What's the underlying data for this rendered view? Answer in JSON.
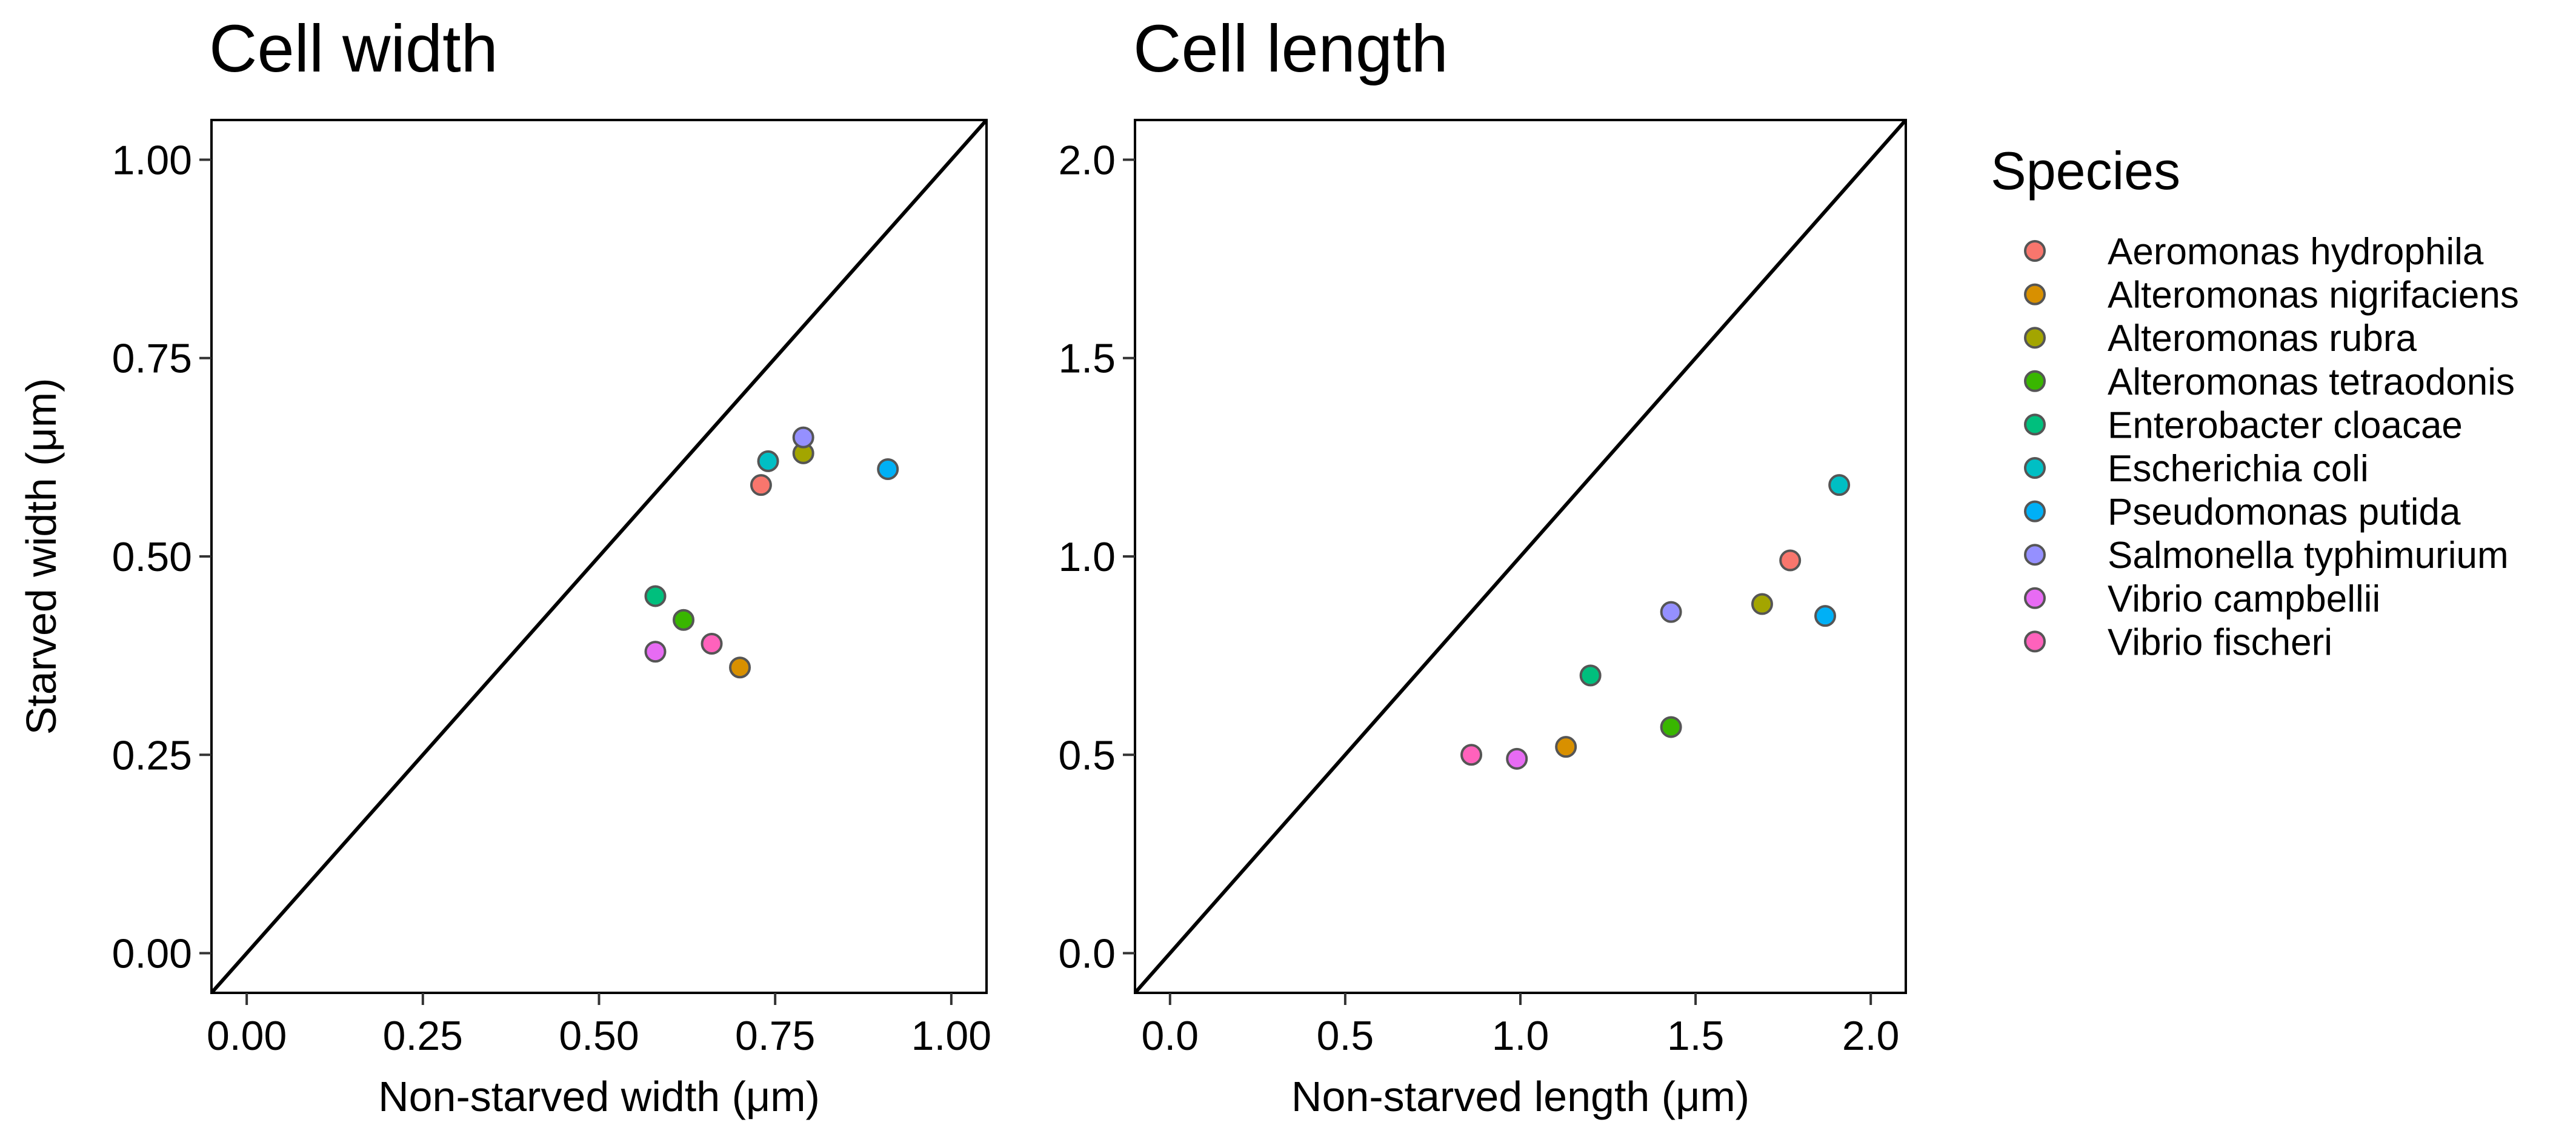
{
  "colors": {
    "Aeromonas hydrophila": "#F8766D",
    "Alteromonas nigrifaciens": "#D89000",
    "Alteromonas rubra": "#A3A500",
    "Alteromonas tetraodonis": "#39B600",
    "Enterobacter cloacae": "#00BF7D",
    "Escherichia coli": "#00BFC4",
    "Pseudomonas putida": "#00B0F6",
    "Salmonella typhimurium": "#9590FF",
    "Vibrio campbellii": "#E76BF3",
    "Vibrio fischeri": "#FF62BC",
    "point_outline": "#555555",
    "identity_line": "#000000"
  },
  "legend": {
    "title": "Species",
    "items": [
      "Aeromonas hydrophila",
      "Alteromonas nigrifaciens",
      "Alteromonas rubra",
      "Alteromonas tetraodonis",
      "Enterobacter cloacae",
      "Escherichia coli",
      "Pseudomonas putida",
      "Salmonella typhimurium",
      "Vibrio campbellii",
      "Vibrio fischeri"
    ]
  },
  "chart_data": [
    {
      "type": "scatter",
      "title": "Cell width",
      "xlabel": "Non-starved width (μm)",
      "ylabel": "Starved width (μm)",
      "xlim": [
        -0.05,
        1.05
      ],
      "ylim": [
        -0.05,
        1.05
      ],
      "xticks": [
        "0.00",
        "0.25",
        "0.50",
        "0.75",
        "1.00"
      ],
      "yticks": [
        "0.00",
        "0.25",
        "0.50",
        "0.75",
        "1.00"
      ],
      "grid": false,
      "reference_line": "y = x",
      "points": [
        {
          "series": "Aeromonas hydrophila",
          "x": 0.73,
          "y": 0.59
        },
        {
          "series": "Alteromonas nigrifaciens",
          "x": 0.7,
          "y": 0.36
        },
        {
          "series": "Alteromonas rubra",
          "x": 0.79,
          "y": 0.63
        },
        {
          "series": "Alteromonas tetraodonis",
          "x": 0.62,
          "y": 0.42
        },
        {
          "series": "Enterobacter cloacae",
          "x": 0.58,
          "y": 0.45
        },
        {
          "series": "Escherichia coli",
          "x": 0.74,
          "y": 0.62
        },
        {
          "series": "Pseudomonas putida",
          "x": 0.91,
          "y": 0.61
        },
        {
          "series": "Salmonella typhimurium",
          "x": 0.79,
          "y": 0.65
        },
        {
          "series": "Vibrio campbellii",
          "x": 0.58,
          "y": 0.38
        },
        {
          "series": "Vibrio fischeri",
          "x": 0.66,
          "y": 0.39
        }
      ]
    },
    {
      "type": "scatter",
      "title": "Cell length",
      "xlabel": "Non-starved length (μm)",
      "ylabel": "",
      "xlim": [
        -0.1,
        2.1
      ],
      "ylim": [
        -0.1,
        2.1
      ],
      "xticks": [
        "0.0",
        "0.5",
        "1.0",
        "1.5",
        "2.0"
      ],
      "yticks": [
        "0.0",
        "0.5",
        "1.0",
        "1.5",
        "2.0"
      ],
      "grid": false,
      "reference_line": "y = x",
      "points": [
        {
          "series": "Aeromonas hydrophila",
          "x": 1.77,
          "y": 0.99
        },
        {
          "series": "Alteromonas nigrifaciens",
          "x": 1.13,
          "y": 0.52
        },
        {
          "series": "Alteromonas rubra",
          "x": 1.69,
          "y": 0.88
        },
        {
          "series": "Alteromonas tetraodonis",
          "x": 1.43,
          "y": 0.57
        },
        {
          "series": "Enterobacter cloacae",
          "x": 1.2,
          "y": 0.7
        },
        {
          "series": "Escherichia coli",
          "x": 1.91,
          "y": 1.18
        },
        {
          "series": "Pseudomonas putida",
          "x": 1.87,
          "y": 0.85
        },
        {
          "series": "Salmonella typhimurium",
          "x": 1.43,
          "y": 0.86
        },
        {
          "series": "Vibrio campbellii",
          "x": 0.99,
          "y": 0.49
        },
        {
          "series": "Vibrio fischeri",
          "x": 0.86,
          "y": 0.5
        }
      ]
    }
  ]
}
